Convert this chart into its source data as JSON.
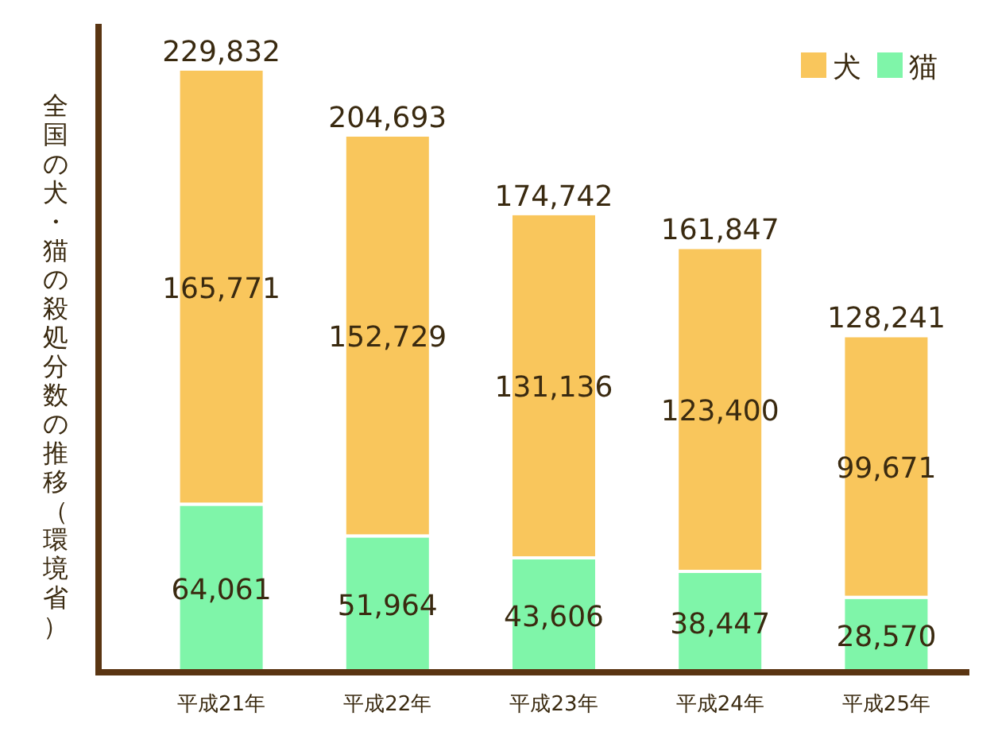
{
  "chart_data": {
    "type": "bar",
    "stacked": true,
    "legend": "top right",
    "ylabel": "全国の犬・猫の殺処分数の推移（環境省）",
    "categories": [
      "平成21年",
      "平成22年",
      "平成23年",
      "平成24年",
      "平成25年"
    ],
    "series": [
      {
        "name": "猫",
        "color": "#7ff5a9",
        "values": [
          64061,
          51964,
          43606,
          38447,
          28570
        ],
        "value_labels": [
          "64,061",
          "51,964",
          "43,606",
          "38,447",
          "28,570"
        ]
      },
      {
        "name": "犬",
        "color": "#f9c65c",
        "values": [
          165771,
          152729,
          131136,
          123400,
          99671
        ],
        "value_labels": [
          "165,771",
          "152,729",
          "131,136",
          "123,400",
          "99,671"
        ]
      }
    ],
    "totals": [
      "229,832",
      "204,693",
      "174,742",
      "161,847",
      "128,241"
    ]
  }
}
